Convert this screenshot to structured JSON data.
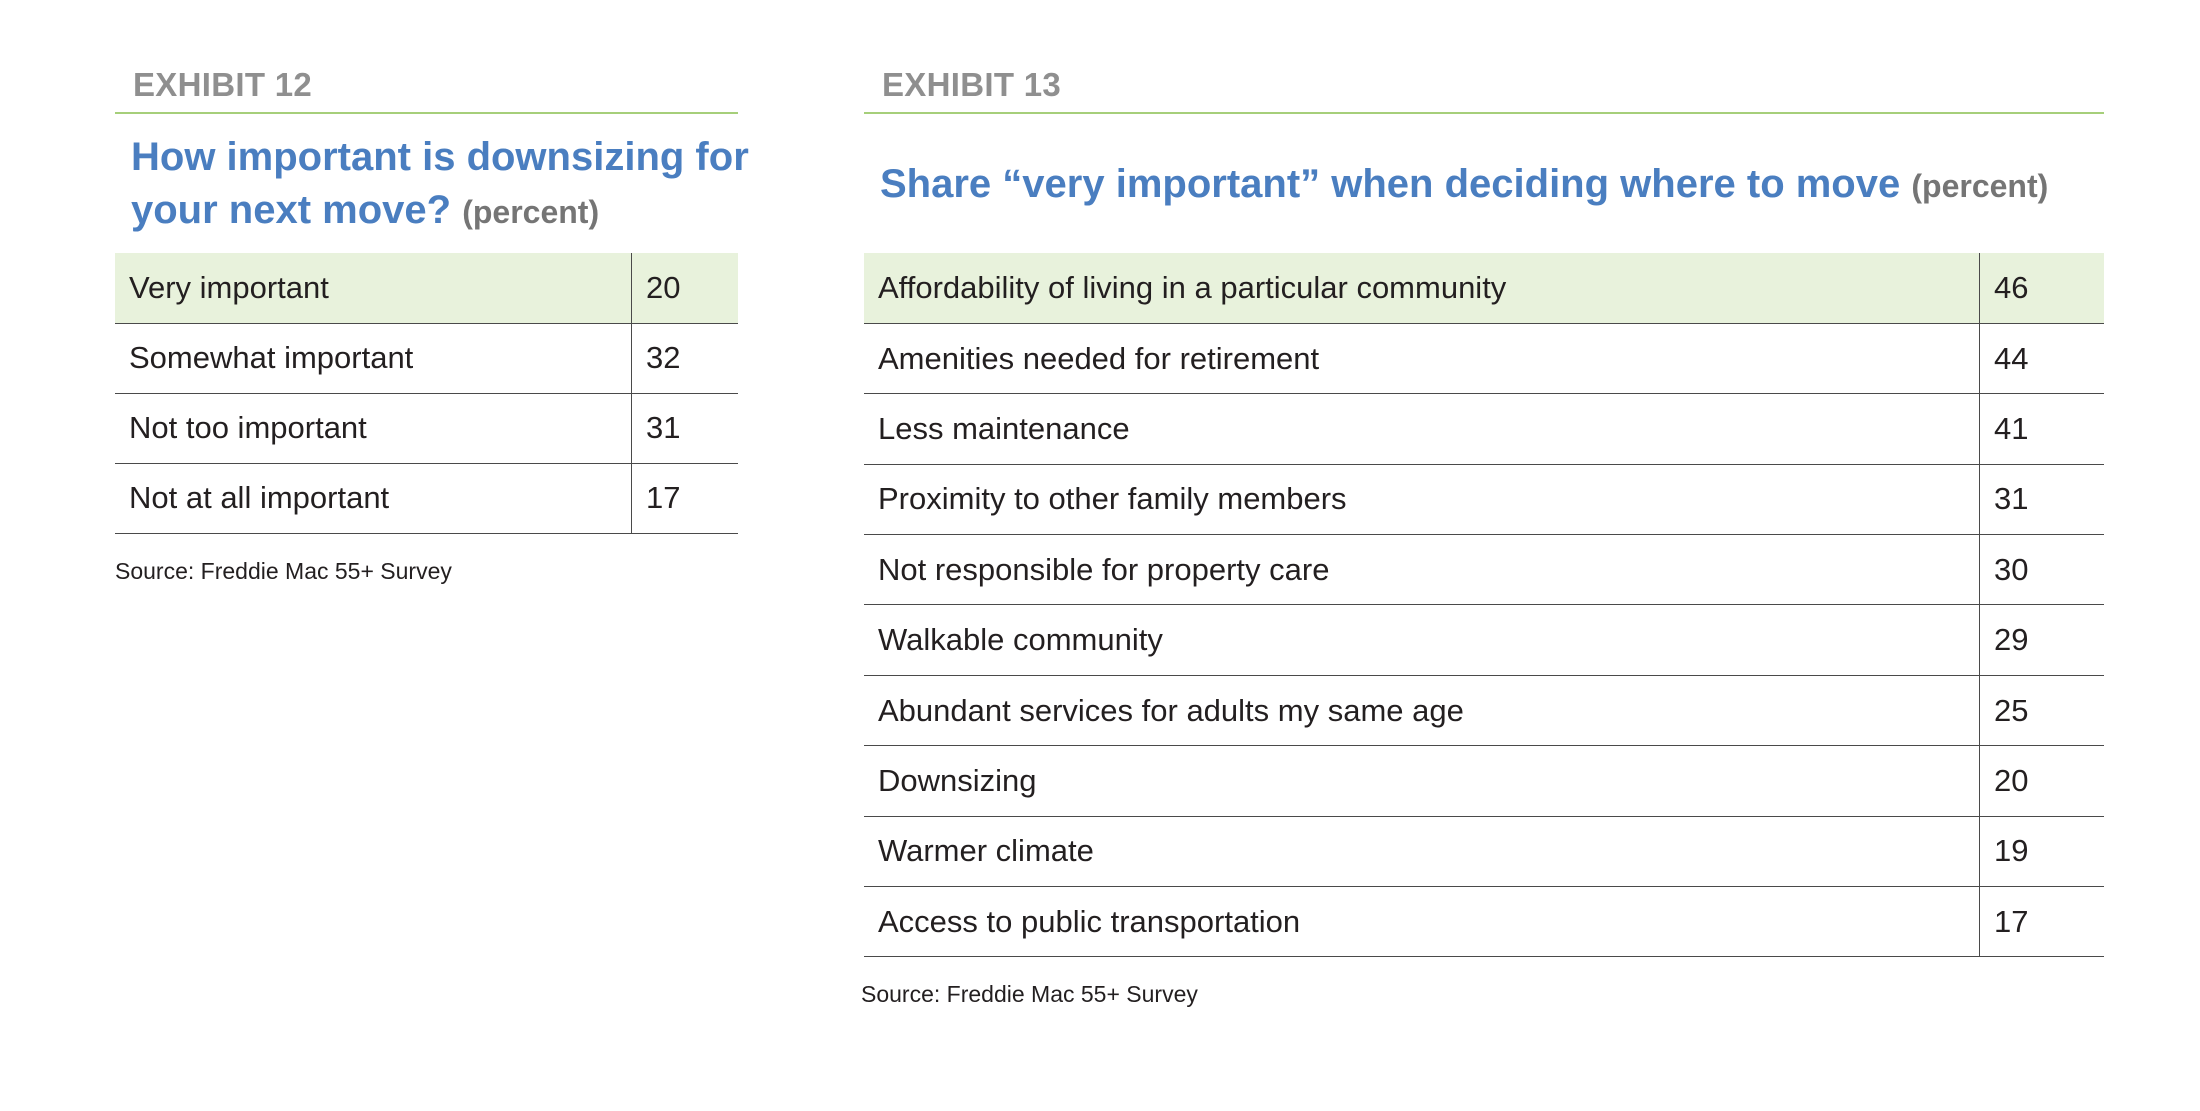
{
  "chart_data": [
    {
      "type": "table",
      "exhibit": "EXHIBIT 12",
      "title": "How important is downsizing for your next move?",
      "unit": "(percent)",
      "categories": [
        "Very important",
        "Somewhat important",
        "Not too important",
        "Not at all important"
      ],
      "values": [
        20,
        32,
        31,
        17
      ],
      "highlight_row": 0,
      "source": "Source: Freddie Mac 55+ Survey"
    },
    {
      "type": "table",
      "exhibit": "EXHIBIT 13",
      "title": "Share “very important” when deciding where to move",
      "unit": "(percent)",
      "categories": [
        "Affordability of living in a particular community",
        "Amenities needed for retirement",
        "Less maintenance",
        "Proximity to other family members",
        "Not responsible for property care",
        "Walkable community",
        "Abundant services for adults my same age",
        "Downsizing",
        "Warmer climate",
        "Access to public transportation"
      ],
      "values": [
        46,
        44,
        41,
        31,
        30,
        29,
        25,
        20,
        19,
        17
      ],
      "highlight_row": 0,
      "source": "Source: Freddie Mac 55+ Survey"
    }
  ],
  "colors": {
    "title_blue": "#4a7ec0",
    "label_gray": "#8f8f8f",
    "rule_green": "#a6cf7a",
    "highlight_green": "#e8f2dc"
  }
}
